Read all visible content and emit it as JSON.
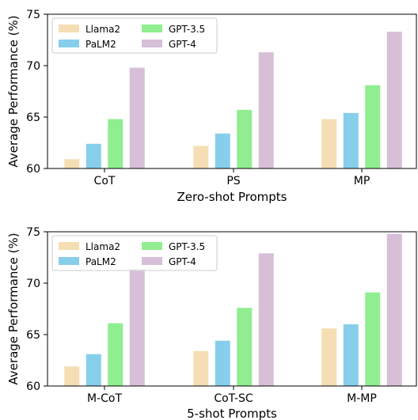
{
  "chart_data": [
    {
      "type": "bar",
      "xlabel": "Zero-shot Prompts",
      "ylabel": "Average Performance (%)",
      "ylim": [
        60,
        75
      ],
      "yticks": [
        60,
        65,
        70,
        75
      ],
      "grid": false,
      "legend_position": "top-left",
      "categories": [
        "CoT",
        "PS",
        "MP"
      ],
      "series": [
        {
          "name": "Llama2",
          "color": "#f5deb3",
          "values": [
            60.9,
            62.2,
            64.8
          ]
        },
        {
          "name": "PaLM2",
          "color": "#87ceeb",
          "values": [
            62.4,
            63.4,
            65.4
          ]
        },
        {
          "name": "GPT-3.5",
          "color": "#90ee90",
          "values": [
            64.8,
            65.7,
            68.1
          ]
        },
        {
          "name": "GPT-4",
          "color": "#d8bfd8",
          "values": [
            69.8,
            71.3,
            73.3
          ]
        }
      ]
    },
    {
      "type": "bar",
      "xlabel": "5-shot Prompts",
      "ylabel": "Average Performance (%)",
      "ylim": [
        60,
        75
      ],
      "yticks": [
        60,
        65,
        70,
        75
      ],
      "grid": false,
      "legend_position": "top-left",
      "categories": [
        "M-CoT",
        "CoT-SC",
        "M-MP"
      ],
      "series": [
        {
          "name": "Llama2",
          "color": "#f5deb3",
          "values": [
            61.9,
            63.4,
            65.6
          ]
        },
        {
          "name": "PaLM2",
          "color": "#87ceeb",
          "values": [
            63.1,
            64.4,
            66.0
          ]
        },
        {
          "name": "GPT-3.5",
          "color": "#90ee90",
          "values": [
            66.1,
            67.6,
            69.1
          ]
        },
        {
          "name": "GPT-4",
          "color": "#d8bfd8",
          "values": [
            71.4,
            72.9,
            74.8
          ]
        }
      ]
    }
  ]
}
